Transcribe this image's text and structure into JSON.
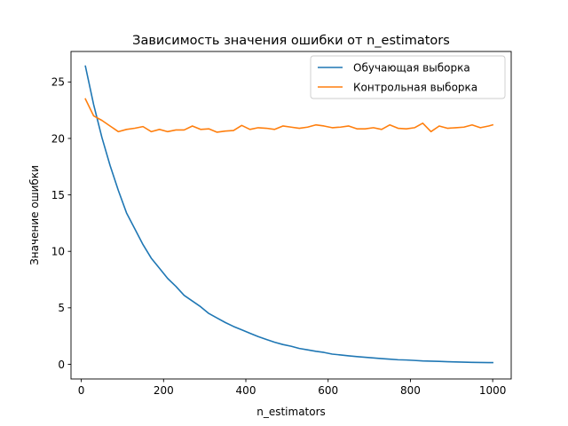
{
  "chart_data": {
    "type": "line",
    "title": "Зависимость значения ошибки от n_estimators",
    "xlabel": "n_estimators",
    "ylabel": "Значение ошибки",
    "xlim": [
      -25,
      1045
    ],
    "ylim": [
      -1.3,
      27.7
    ],
    "xticks": [
      {
        "value": 0,
        "label": "0"
      },
      {
        "value": 200,
        "label": "200"
      },
      {
        "value": 400,
        "label": "400"
      },
      {
        "value": 600,
        "label": "600"
      },
      {
        "value": 800,
        "label": "800"
      },
      {
        "value": 1000,
        "label": "1000"
      }
    ],
    "yticks": [
      {
        "value": 0,
        "label": "0"
      },
      {
        "value": 5,
        "label": "5"
      },
      {
        "value": 10,
        "label": "10"
      },
      {
        "value": 15,
        "label": "15"
      },
      {
        "value": 20,
        "label": "20"
      },
      {
        "value": 25,
        "label": "25"
      }
    ],
    "grid": false,
    "legend_position": "top-right",
    "x": [
      10,
      30,
      50,
      70,
      90,
      110,
      130,
      150,
      170,
      190,
      210,
      230,
      250,
      270,
      290,
      310,
      330,
      350,
      370,
      390,
      410,
      430,
      450,
      470,
      490,
      510,
      530,
      550,
      570,
      590,
      610,
      630,
      650,
      670,
      690,
      710,
      730,
      750,
      770,
      790,
      810,
      830,
      850,
      870,
      890,
      910,
      930,
      950,
      970,
      990,
      1000
    ],
    "series": [
      {
        "name": "Обучающая выборка",
        "color": "#1f77b4",
        "values": [
          26.4,
          23.0,
          20.1,
          17.6,
          15.4,
          13.4,
          12.0,
          10.6,
          9.4,
          8.5,
          7.6,
          6.9,
          6.1,
          5.6,
          5.1,
          4.5,
          4.1,
          3.7,
          3.35,
          3.05,
          2.75,
          2.45,
          2.2,
          1.95,
          1.75,
          1.6,
          1.4,
          1.28,
          1.15,
          1.05,
          0.9,
          0.83,
          0.75,
          0.68,
          0.62,
          0.56,
          0.5,
          0.45,
          0.4,
          0.38,
          0.34,
          0.3,
          0.28,
          0.26,
          0.23,
          0.21,
          0.19,
          0.17,
          0.16,
          0.15,
          0.15
        ]
      },
      {
        "name": "Контрольная выборка",
        "color": "#ff7f0e",
        "values": [
          23.5,
          22.0,
          21.6,
          21.1,
          20.6,
          20.8,
          20.9,
          21.05,
          20.6,
          20.8,
          20.6,
          20.75,
          20.75,
          21.1,
          20.8,
          20.85,
          20.55,
          20.65,
          20.7,
          21.15,
          20.8,
          20.95,
          20.9,
          20.8,
          21.1,
          21.0,
          20.9,
          21.0,
          21.2,
          21.1,
          20.95,
          21.0,
          21.1,
          20.85,
          20.85,
          20.95,
          20.8,
          21.2,
          20.9,
          20.85,
          20.95,
          21.35,
          20.6,
          21.1,
          20.9,
          20.95,
          21.0,
          21.2,
          20.95,
          21.1,
          21.2
        ]
      }
    ]
  }
}
